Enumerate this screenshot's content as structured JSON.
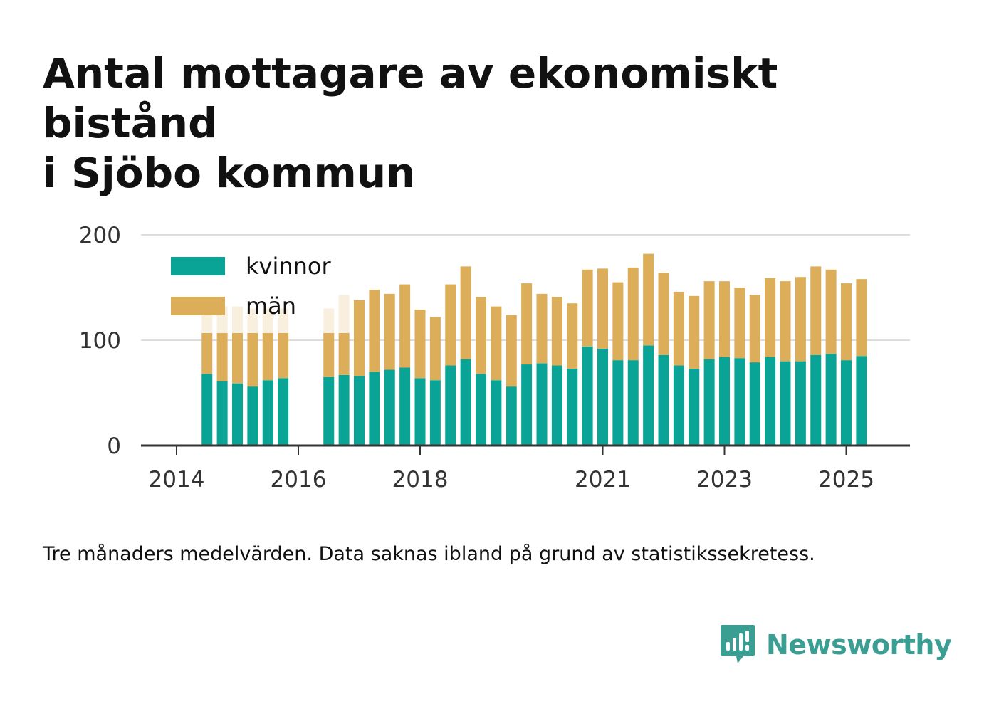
{
  "title_lines": [
    "Antal mottagare av ekonomiskt bistånd",
    "i Sjöbo kommun"
  ],
  "note": "Tre månaders medelvärden. Data saknas ibland på grund av statistikssekretess.",
  "brand": {
    "name": "Newsworthy",
    "color": "#3b9e92",
    "icon": "newsworthy-chat-bars-icon"
  },
  "chart_data": {
    "type": "bar",
    "stacked": true,
    "x_axis_type": "date",
    "x_tick_labels": [
      "2014",
      "2016",
      "2018",
      "2021",
      "2023",
      "2025"
    ],
    "y_ticks": [
      0,
      100,
      200
    ],
    "ylim": [
      0,
      200
    ],
    "grid": true,
    "legend_position": "top-left",
    "x": [
      "2014-07",
      "2014-10",
      "2015-01",
      "2015-04",
      "2015-07",
      "2015-10",
      "2016-07",
      "2016-10",
      "2017-01",
      "2017-04",
      "2017-07",
      "2017-10",
      "2018-01",
      "2018-04",
      "2018-07",
      "2018-10",
      "2019-01",
      "2019-04",
      "2019-07",
      "2019-10",
      "2020-01",
      "2020-04",
      "2020-07",
      "2020-10",
      "2021-01",
      "2021-04",
      "2021-07",
      "2021-10",
      "2022-01",
      "2022-04",
      "2022-07",
      "2022-10",
      "2023-01",
      "2023-04",
      "2023-07",
      "2023-10",
      "2024-01",
      "2024-04",
      "2024-07",
      "2024-10",
      "2025-01",
      "2025-04"
    ],
    "series": [
      {
        "name": "kvinnor",
        "color": "#0aa496",
        "values": [
          68,
          61,
          59,
          56,
          62,
          64,
          65,
          67,
          66,
          70,
          72,
          74,
          64,
          62,
          76,
          82,
          68,
          62,
          56,
          77,
          78,
          76,
          73,
          94,
          92,
          81,
          81,
          95,
          86,
          76,
          73,
          82,
          84,
          83,
          79,
          84,
          80,
          80,
          86,
          87,
          81,
          85
        ]
      },
      {
        "name": "män",
        "color": "#dcae5a",
        "values": [
          62,
          71,
          73,
          74,
          68,
          66,
          65,
          76,
          72,
          78,
          72,
          79,
          65,
          60,
          77,
          88,
          73,
          70,
          68,
          77,
          66,
          65,
          62,
          73,
          76,
          74,
          88,
          87,
          78,
          70,
          69,
          74,
          72,
          67,
          64,
          75,
          76,
          80,
          84,
          80,
          73,
          73
        ]
      }
    ]
  }
}
